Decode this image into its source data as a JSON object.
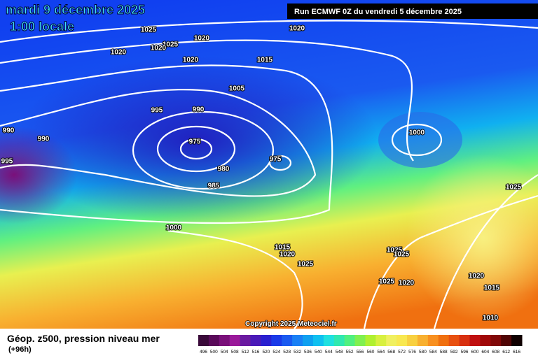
{
  "header": {
    "date": "mardi 9 décembre 2025",
    "time": "1:00 locale",
    "run": "Run ECMWF 0Z du vendredi 5 décembre 2025"
  },
  "map": {
    "copyright": "Copyright 2025 Meteociel.fr",
    "isobar_labels": [
      "1025",
      "1020",
      "1020",
      "1025",
      "1020",
      "1020",
      "1015",
      "1005",
      "995",
      "990",
      "990",
      "990",
      "995",
      "975",
      "975",
      "980",
      "985",
      "1000",
      "1000",
      "1015",
      "1020",
      "1025",
      "1025",
      "1025",
      "1025",
      "1020",
      "1015",
      "1010",
      "1025",
      "1020",
      "1020"
    ]
  },
  "legend": {
    "title": "Géop. z500, pression niveau mer",
    "lead": "(+96h)",
    "labels": [
      "496",
      "500",
      "504",
      "508",
      "512",
      "516",
      "520",
      "524",
      "528",
      "532",
      "536",
      "540",
      "544",
      "548",
      "552",
      "556",
      "560",
      "564",
      "568",
      "572",
      "576",
      "580",
      "584",
      "588",
      "592",
      "596",
      "600",
      "604",
      "608",
      "612",
      "616"
    ],
    "colors": [
      "#3a0a3a",
      "#5a0a5a",
      "#7a107a",
      "#9a1a9a",
      "#6a1aa0",
      "#4a1ab8",
      "#2a20d0",
      "#1a3ae8",
      "#1a5af0",
      "#1a80f5",
      "#10a0f0",
      "#10c0f0",
      "#20e0e0",
      "#30e8b0",
      "#50f080",
      "#80f050",
      "#b0f030",
      "#d8f040",
      "#f0f060",
      "#f8e850",
      "#f8d040",
      "#f8b030",
      "#f89020",
      "#f07010",
      "#e85010",
      "#d83010",
      "#c01010",
      "#a00808",
      "#800808",
      "#500505",
      "#100000"
    ]
  }
}
